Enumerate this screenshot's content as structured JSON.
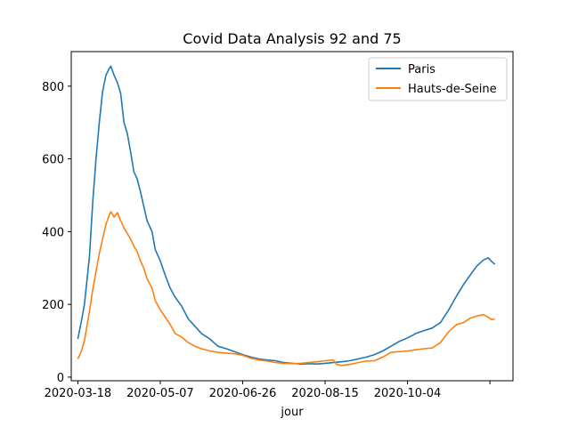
{
  "chart_data": {
    "type": "line",
    "title": "Covid Data Analysis 92 and 75",
    "xlabel": "jour",
    "ylabel": "",
    "x_ticks": [
      "2020-03-18",
      "2020-05-07",
      "2020-06-26",
      "2020-08-15",
      "2020-10-04",
      ""
    ],
    "y_ticks": [
      0,
      200,
      400,
      600,
      800
    ],
    "ylim": [
      -10,
      895
    ],
    "xlim": [
      "2020-03-14",
      "2020-12-07"
    ],
    "legend_placement": "top-right",
    "grid": false,
    "series": [
      {
        "name": "Paris",
        "color": "#1f77b4",
        "points": [
          [
            "2020-03-18",
            105
          ],
          [
            "2020-03-20",
            150
          ],
          [
            "2020-03-22",
            200
          ],
          [
            "2020-03-25",
            330
          ],
          [
            "2020-03-27",
            480
          ],
          [
            "2020-03-29",
            600
          ],
          [
            "2020-03-31",
            700
          ],
          [
            "2020-04-02",
            785
          ],
          [
            "2020-04-04",
            830
          ],
          [
            "2020-04-06",
            848
          ],
          [
            "2020-04-07",
            855
          ],
          [
            "2020-04-09",
            830
          ],
          [
            "2020-04-11",
            810
          ],
          [
            "2020-04-13",
            780
          ],
          [
            "2020-04-15",
            700
          ],
          [
            "2020-04-17",
            670
          ],
          [
            "2020-04-19",
            620
          ],
          [
            "2020-04-21",
            565
          ],
          [
            "2020-04-23",
            545
          ],
          [
            "2020-04-25",
            510
          ],
          [
            "2020-04-27",
            470
          ],
          [
            "2020-04-29",
            430
          ],
          [
            "2020-05-02",
            400
          ],
          [
            "2020-05-04",
            350
          ],
          [
            "2020-05-07",
            320
          ],
          [
            "2020-05-10",
            280
          ],
          [
            "2020-05-13",
            245
          ],
          [
            "2020-05-16",
            220
          ],
          [
            "2020-05-20",
            195
          ],
          [
            "2020-05-24",
            160
          ],
          [
            "2020-05-28",
            140
          ],
          [
            "2020-06-01",
            120
          ],
          [
            "2020-06-06",
            105
          ],
          [
            "2020-06-11",
            85
          ],
          [
            "2020-06-16",
            78
          ],
          [
            "2020-06-21",
            70
          ],
          [
            "2020-06-26",
            62
          ],
          [
            "2020-07-01",
            55
          ],
          [
            "2020-07-06",
            50
          ],
          [
            "2020-07-11",
            47
          ],
          [
            "2020-07-16",
            45
          ],
          [
            "2020-07-21",
            40
          ],
          [
            "2020-07-26",
            38
          ],
          [
            "2020-07-31",
            36
          ],
          [
            "2020-08-05",
            37
          ],
          [
            "2020-08-10",
            36
          ],
          [
            "2020-08-15",
            38
          ],
          [
            "2020-08-20",
            40
          ],
          [
            "2020-08-25",
            42
          ],
          [
            "2020-08-30",
            45
          ],
          [
            "2020-09-04",
            50
          ],
          [
            "2020-09-09",
            55
          ],
          [
            "2020-09-14",
            62
          ],
          [
            "2020-09-19",
            72
          ],
          [
            "2020-09-24",
            85
          ],
          [
            "2020-09-29",
            98
          ],
          [
            "2020-10-04",
            108
          ],
          [
            "2020-10-09",
            120
          ],
          [
            "2020-10-14",
            128
          ],
          [
            "2020-10-19",
            135
          ],
          [
            "2020-10-24",
            150
          ],
          [
            "2020-10-29",
            185
          ],
          [
            "2020-11-03",
            225
          ],
          [
            "2020-11-07",
            255
          ],
          [
            "2020-11-11",
            280
          ],
          [
            "2020-11-15",
            305
          ],
          [
            "2020-11-19",
            322
          ],
          [
            "2020-11-22",
            328
          ],
          [
            "2020-11-24",
            318
          ],
          [
            "2020-11-26",
            310
          ]
        ]
      },
      {
        "name": "Hauts-de-Seine",
        "color": "#ff7f0e",
        "points": [
          [
            "2020-03-18",
            50
          ],
          [
            "2020-03-20",
            70
          ],
          [
            "2020-03-22",
            100
          ],
          [
            "2020-03-25",
            180
          ],
          [
            "2020-03-27",
            240
          ],
          [
            "2020-03-29",
            290
          ],
          [
            "2020-03-31",
            340
          ],
          [
            "2020-04-02",
            380
          ],
          [
            "2020-04-04",
            420
          ],
          [
            "2020-04-06",
            445
          ],
          [
            "2020-04-07",
            455
          ],
          [
            "2020-04-09",
            440
          ],
          [
            "2020-04-11",
            452
          ],
          [
            "2020-04-13",
            430
          ],
          [
            "2020-04-15",
            410
          ],
          [
            "2020-04-17",
            395
          ],
          [
            "2020-04-19",
            380
          ],
          [
            "2020-04-21",
            360
          ],
          [
            "2020-04-23",
            345
          ],
          [
            "2020-04-25",
            320
          ],
          [
            "2020-04-27",
            300
          ],
          [
            "2020-04-29",
            270
          ],
          [
            "2020-05-02",
            245
          ],
          [
            "2020-05-04",
            210
          ],
          [
            "2020-05-07",
            185
          ],
          [
            "2020-05-10",
            165
          ],
          [
            "2020-05-13",
            145
          ],
          [
            "2020-05-16",
            120
          ],
          [
            "2020-05-20",
            110
          ],
          [
            "2020-05-24",
            95
          ],
          [
            "2020-05-28",
            85
          ],
          [
            "2020-06-01",
            78
          ],
          [
            "2020-06-06",
            72
          ],
          [
            "2020-06-11",
            68
          ],
          [
            "2020-06-16",
            66
          ],
          [
            "2020-06-21",
            64
          ],
          [
            "2020-06-26",
            60
          ],
          [
            "2020-07-01",
            52
          ],
          [
            "2020-07-06",
            47
          ],
          [
            "2020-07-11",
            44
          ],
          [
            "2020-07-16",
            40
          ],
          [
            "2020-07-21",
            38
          ],
          [
            "2020-07-26",
            37
          ],
          [
            "2020-07-31",
            38
          ],
          [
            "2020-08-05",
            40
          ],
          [
            "2020-08-10",
            42
          ],
          [
            "2020-08-15",
            45
          ],
          [
            "2020-08-20",
            47
          ],
          [
            "2020-08-22",
            35
          ],
          [
            "2020-08-25",
            32
          ],
          [
            "2020-08-30",
            35
          ],
          [
            "2020-09-04",
            40
          ],
          [
            "2020-09-09",
            44
          ],
          [
            "2020-09-14",
            45
          ],
          [
            "2020-09-19",
            55
          ],
          [
            "2020-09-24",
            68
          ],
          [
            "2020-09-29",
            70
          ],
          [
            "2020-10-04",
            72
          ],
          [
            "2020-10-09",
            75
          ],
          [
            "2020-10-14",
            78
          ],
          [
            "2020-10-19",
            80
          ],
          [
            "2020-10-24",
            95
          ],
          [
            "2020-10-29",
            125
          ],
          [
            "2020-11-03",
            145
          ],
          [
            "2020-11-07",
            150
          ],
          [
            "2020-11-11",
            162
          ],
          [
            "2020-11-15",
            168
          ],
          [
            "2020-11-19",
            172
          ],
          [
            "2020-11-22",
            165
          ],
          [
            "2020-11-24",
            158
          ],
          [
            "2020-11-26",
            160
          ]
        ]
      }
    ]
  }
}
